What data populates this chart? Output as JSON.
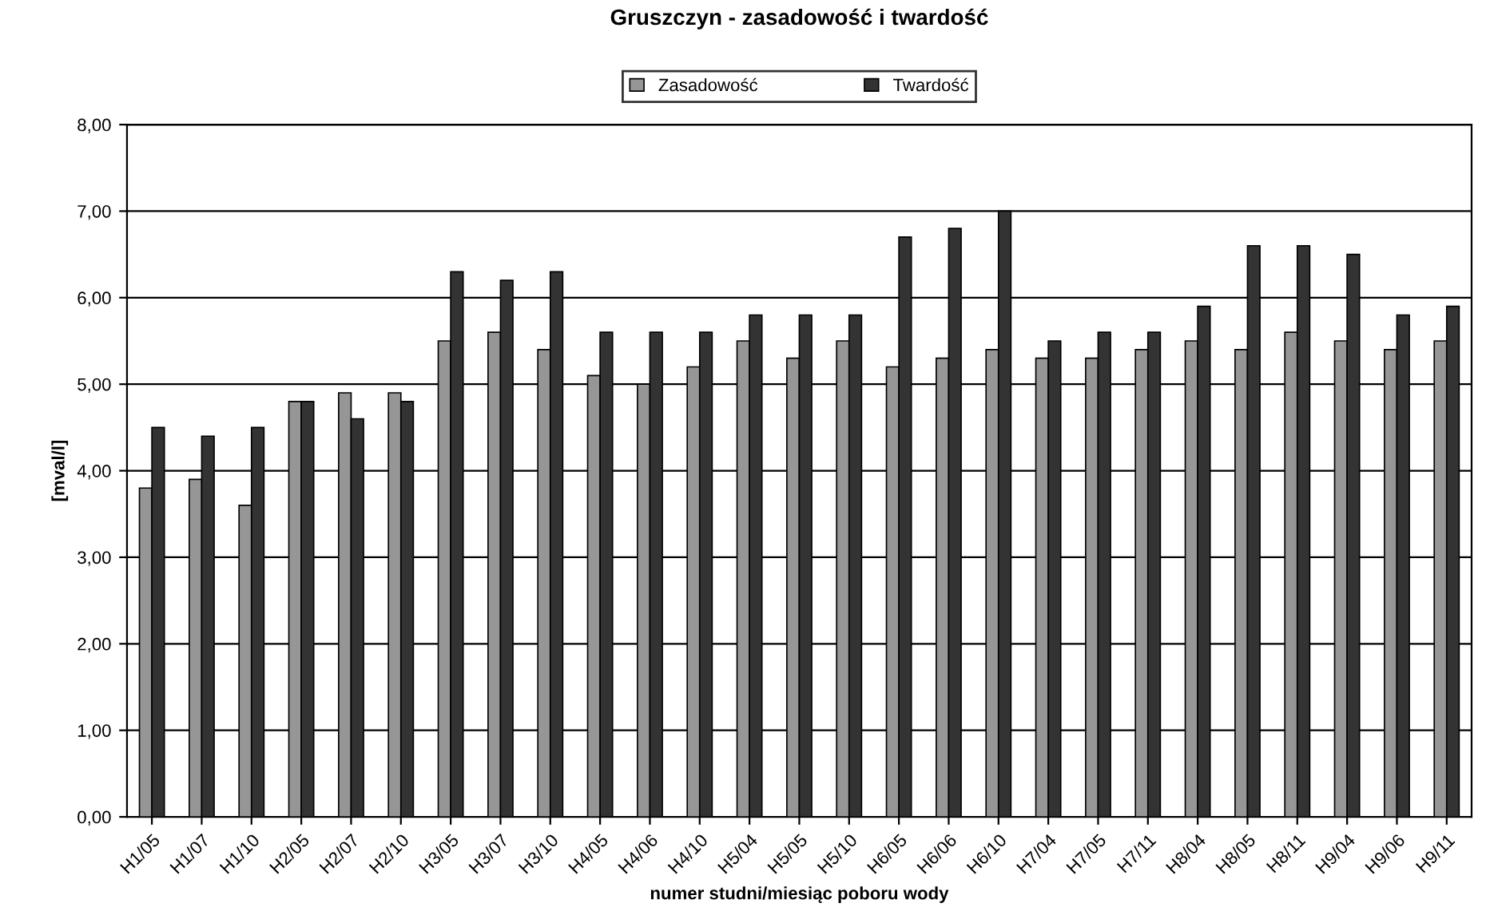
{
  "chart_data": {
    "type": "bar",
    "title": "Gruszczyn - zasadowość i twardość",
    "xlabel": "numer studni/miesiąc poboru wody",
    "ylabel": "[mval/l]",
    "categories": [
      "H1/05",
      "H1/07",
      "H1/10",
      "H2/05",
      "H2/07",
      "H2/10",
      "H3/05",
      "H3/07",
      "H3/10",
      "H4/05",
      "H4/06",
      "H4/10",
      "H5/04",
      "H5/05",
      "H5/10",
      "H6/05",
      "H6/06",
      "H6/10",
      "H7/04",
      "H7/05",
      "H7/11",
      "H8/04",
      "H8/05",
      "H8/11",
      "H9/04",
      "H9/06",
      "H9/11"
    ],
    "series": [
      {
        "name": "Zasadowość",
        "color": "#969696",
        "values": [
          3.8,
          3.9,
          3.6,
          4.8,
          4.9,
          4.9,
          5.5,
          5.6,
          5.4,
          5.1,
          5.0,
          5.2,
          5.5,
          5.3,
          5.5,
          5.2,
          5.3,
          5.4,
          5.3,
          5.3,
          5.4,
          5.5,
          5.4,
          5.6,
          5.5,
          5.4,
          5.5
        ]
      },
      {
        "name": "Twardość",
        "color": "#333333",
        "values": [
          4.5,
          4.4,
          4.5,
          4.8,
          4.6,
          4.8,
          6.3,
          6.2,
          6.3,
          5.6,
          5.6,
          5.6,
          5.8,
          5.8,
          5.8,
          6.7,
          6.8,
          7.0,
          5.5,
          5.6,
          5.6,
          5.9,
          6.6,
          6.6,
          6.5,
          5.8,
          5.9
        ]
      }
    ],
    "ylim": [
      0,
      8
    ],
    "yticks": [
      {
        "value": 0,
        "label": "0,00"
      },
      {
        "value": 1,
        "label": "1,00"
      },
      {
        "value": 2,
        "label": "2,00"
      },
      {
        "value": 3,
        "label": "3,00"
      },
      {
        "value": 4,
        "label": "4,00"
      },
      {
        "value": 5,
        "label": "5,00"
      },
      {
        "value": 6,
        "label": "6,00"
      },
      {
        "value": 7,
        "label": "7,00"
      },
      {
        "value": 8,
        "label": "8,00"
      }
    ],
    "grid": "y",
    "legend": "top"
  }
}
